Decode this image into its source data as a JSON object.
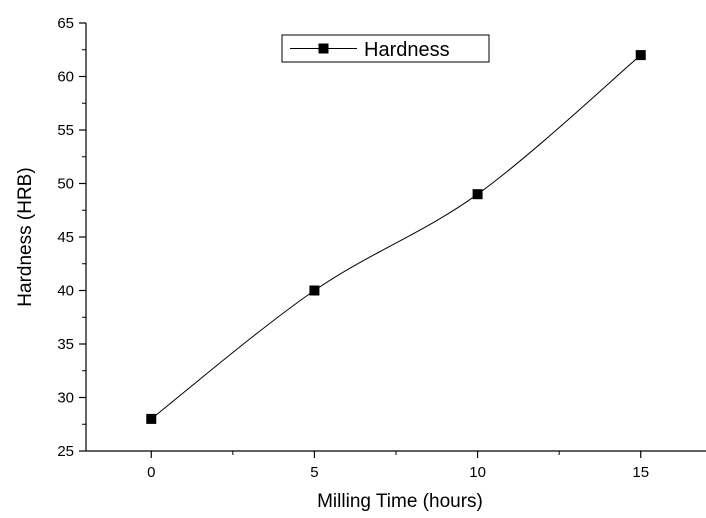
{
  "chart_data": {
    "type": "line",
    "title": "",
    "xlabel": "Milling Time (hours)",
    "ylabel": "Hardness (HRB)",
    "xlim": [
      -2,
      17
    ],
    "ylim": [
      25,
      65
    ],
    "x_ticks": [
      0,
      5,
      10,
      15
    ],
    "x_tick_labels": [
      "0",
      "5",
      "10",
      "15"
    ],
    "y_ticks": [
      25,
      30,
      35,
      40,
      45,
      50,
      55,
      60,
      65
    ],
    "y_tick_labels": [
      "25",
      "30",
      "35",
      "40",
      "45",
      "50",
      "55",
      "60",
      "65"
    ],
    "grid": false,
    "legend_position": "top-center",
    "series": [
      {
        "name": "Hardness",
        "marker": "square",
        "smooth": true,
        "color": "#000000",
        "x": [
          0,
          5,
          10,
          15
        ],
        "values": [
          28,
          40,
          49,
          62
        ]
      }
    ]
  }
}
